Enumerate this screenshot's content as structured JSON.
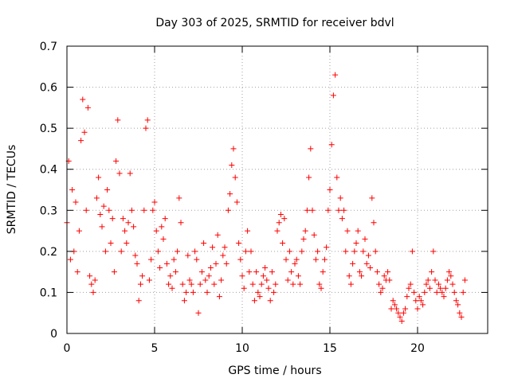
{
  "chart_data": {
    "type": "scatter",
    "title": "Day 303 of 2025, SRMTID for receiver bdvl",
    "xlabel": "GPS time / hours",
    "ylabel": "SRMTID / TECUs",
    "xlim": [
      0,
      24
    ],
    "ylim": [
      0,
      0.7
    ],
    "xticks": [
      0,
      5,
      10,
      15,
      20
    ],
    "yticks": [
      0,
      0.1,
      0.2,
      0.3,
      0.4,
      0.5,
      0.6,
      0.7
    ],
    "grid": true,
    "marker": "+",
    "color": "#ff0000",
    "series": [
      {
        "name": "SRMTID",
        "x": [
          0.0,
          0.1,
          0.2,
          0.3,
          0.4,
          0.5,
          0.6,
          0.7,
          0.8,
          0.9,
          1.0,
          1.1,
          1.2,
          1.3,
          1.4,
          1.5,
          1.6,
          1.7,
          1.8,
          1.9,
          2.0,
          2.1,
          2.2,
          2.3,
          2.4,
          2.5,
          2.6,
          2.7,
          2.8,
          2.9,
          3.0,
          3.1,
          3.2,
          3.3,
          3.4,
          3.5,
          3.6,
          3.7,
          3.8,
          3.9,
          4.0,
          4.1,
          4.2,
          4.3,
          4.4,
          4.5,
          4.6,
          4.7,
          4.8,
          4.9,
          5.0,
          5.1,
          5.2,
          5.3,
          5.4,
          5.5,
          5.6,
          5.7,
          5.8,
          5.9,
          6.0,
          6.1,
          6.2,
          6.3,
          6.4,
          6.5,
          6.6,
          6.7,
          6.8,
          6.9,
          7.0,
          7.1,
          7.2,
          7.3,
          7.4,
          7.5,
          7.6,
          7.7,
          7.8,
          7.9,
          8.0,
          8.1,
          8.2,
          8.3,
          8.4,
          8.5,
          8.6,
          8.7,
          8.8,
          8.9,
          9.0,
          9.1,
          9.2,
          9.3,
          9.4,
          9.5,
          9.6,
          9.7,
          9.8,
          9.9,
          10.0,
          10.1,
          10.2,
          10.3,
          10.4,
          10.5,
          10.6,
          10.7,
          10.8,
          10.9,
          11.0,
          11.1,
          11.2,
          11.3,
          11.4,
          11.5,
          11.6,
          11.7,
          11.8,
          11.9,
          12.0,
          12.1,
          12.2,
          12.3,
          12.4,
          12.5,
          12.6,
          12.7,
          12.8,
          12.9,
          13.0,
          13.1,
          13.2,
          13.3,
          13.4,
          13.5,
          13.6,
          13.7,
          13.8,
          13.9,
          14.0,
          14.1,
          14.2,
          14.3,
          14.4,
          14.5,
          14.6,
          14.7,
          14.8,
          14.9,
          15.0,
          15.1,
          15.2,
          15.3,
          15.4,
          15.5,
          15.6,
          15.7,
          15.8,
          15.9,
          16.0,
          16.1,
          16.2,
          16.3,
          16.4,
          16.5,
          16.6,
          16.7,
          16.8,
          16.9,
          17.0,
          17.1,
          17.2,
          17.3,
          17.4,
          17.5,
          17.6,
          17.7,
          17.8,
          17.9,
          18.0,
          18.1,
          18.2,
          18.3,
          18.4,
          18.5,
          18.6,
          18.7,
          18.8,
          18.9,
          19.0,
          19.1,
          19.2,
          19.3,
          19.4,
          19.5,
          19.6,
          19.7,
          19.8,
          19.9,
          20.0,
          20.1,
          20.2,
          20.3,
          20.4,
          20.5,
          20.6,
          20.7,
          20.8,
          20.9,
          21.0,
          21.1,
          21.2,
          21.3,
          21.4,
          21.5,
          21.6,
          21.7,
          21.8,
          21.9,
          22.0,
          22.1,
          22.2,
          22.3,
          22.4,
          22.5,
          22.6,
          22.7
        ],
        "y": [
          0.27,
          0.42,
          0.18,
          0.35,
          0.2,
          0.32,
          0.15,
          0.25,
          0.47,
          0.57,
          0.49,
          0.3,
          0.55,
          0.14,
          0.12,
          0.1,
          0.13,
          0.33,
          0.38,
          0.29,
          0.26,
          0.31,
          0.2,
          0.35,
          0.3,
          0.22,
          0.28,
          0.15,
          0.42,
          0.52,
          0.39,
          0.2,
          0.28,
          0.25,
          0.22,
          0.27,
          0.39,
          0.3,
          0.26,
          0.19,
          0.17,
          0.08,
          0.12,
          0.14,
          0.3,
          0.5,
          0.52,
          0.13,
          0.18,
          0.3,
          0.32,
          0.25,
          0.2,
          0.16,
          0.26,
          0.23,
          0.28,
          0.17,
          0.12,
          0.14,
          0.11,
          0.18,
          0.15,
          0.2,
          0.33,
          0.27,
          0.12,
          0.08,
          0.1,
          0.19,
          0.13,
          0.12,
          0.1,
          0.2,
          0.18,
          0.05,
          0.12,
          0.15,
          0.22,
          0.13,
          0.1,
          0.14,
          0.16,
          0.21,
          0.12,
          0.17,
          0.24,
          0.09,
          0.13,
          0.19,
          0.21,
          0.17,
          0.3,
          0.34,
          0.41,
          0.45,
          0.38,
          0.32,
          0.22,
          0.18,
          0.14,
          0.11,
          0.2,
          0.25,
          0.15,
          0.2,
          0.12,
          0.08,
          0.15,
          0.1,
          0.09,
          0.12,
          0.14,
          0.16,
          0.13,
          0.11,
          0.08,
          0.15,
          0.1,
          0.12,
          0.25,
          0.27,
          0.29,
          0.22,
          0.28,
          0.18,
          0.13,
          0.2,
          0.15,
          0.12,
          0.17,
          0.18,
          0.14,
          0.12,
          0.2,
          0.23,
          0.25,
          0.3,
          0.38,
          0.45,
          0.3,
          0.24,
          0.18,
          0.2,
          0.12,
          0.11,
          0.15,
          0.18,
          0.21,
          0.3,
          0.35,
          0.46,
          0.58,
          0.63,
          0.38,
          0.3,
          0.33,
          0.28,
          0.3,
          0.2,
          0.25,
          0.14,
          0.12,
          0.17,
          0.2,
          0.22,
          0.25,
          0.15,
          0.14,
          0.2,
          0.23,
          0.17,
          0.19,
          0.16,
          0.33,
          0.27,
          0.2,
          0.15,
          0.12,
          0.1,
          0.11,
          0.14,
          0.13,
          0.15,
          0.13,
          0.06,
          0.08,
          0.07,
          0.06,
          0.05,
          0.04,
          0.03,
          0.05,
          0.06,
          0.09,
          0.11,
          0.12,
          0.2,
          0.1,
          0.08,
          0.06,
          0.09,
          0.08,
          0.07,
          0.1,
          0.12,
          0.13,
          0.11,
          0.15,
          0.2,
          0.13,
          0.1,
          0.12,
          0.11,
          0.1,
          0.09,
          0.11,
          0.13,
          0.15,
          0.14,
          0.12,
          0.1,
          0.08,
          0.07,
          0.05,
          0.04,
          0.1,
          0.13
        ]
      }
    ]
  }
}
